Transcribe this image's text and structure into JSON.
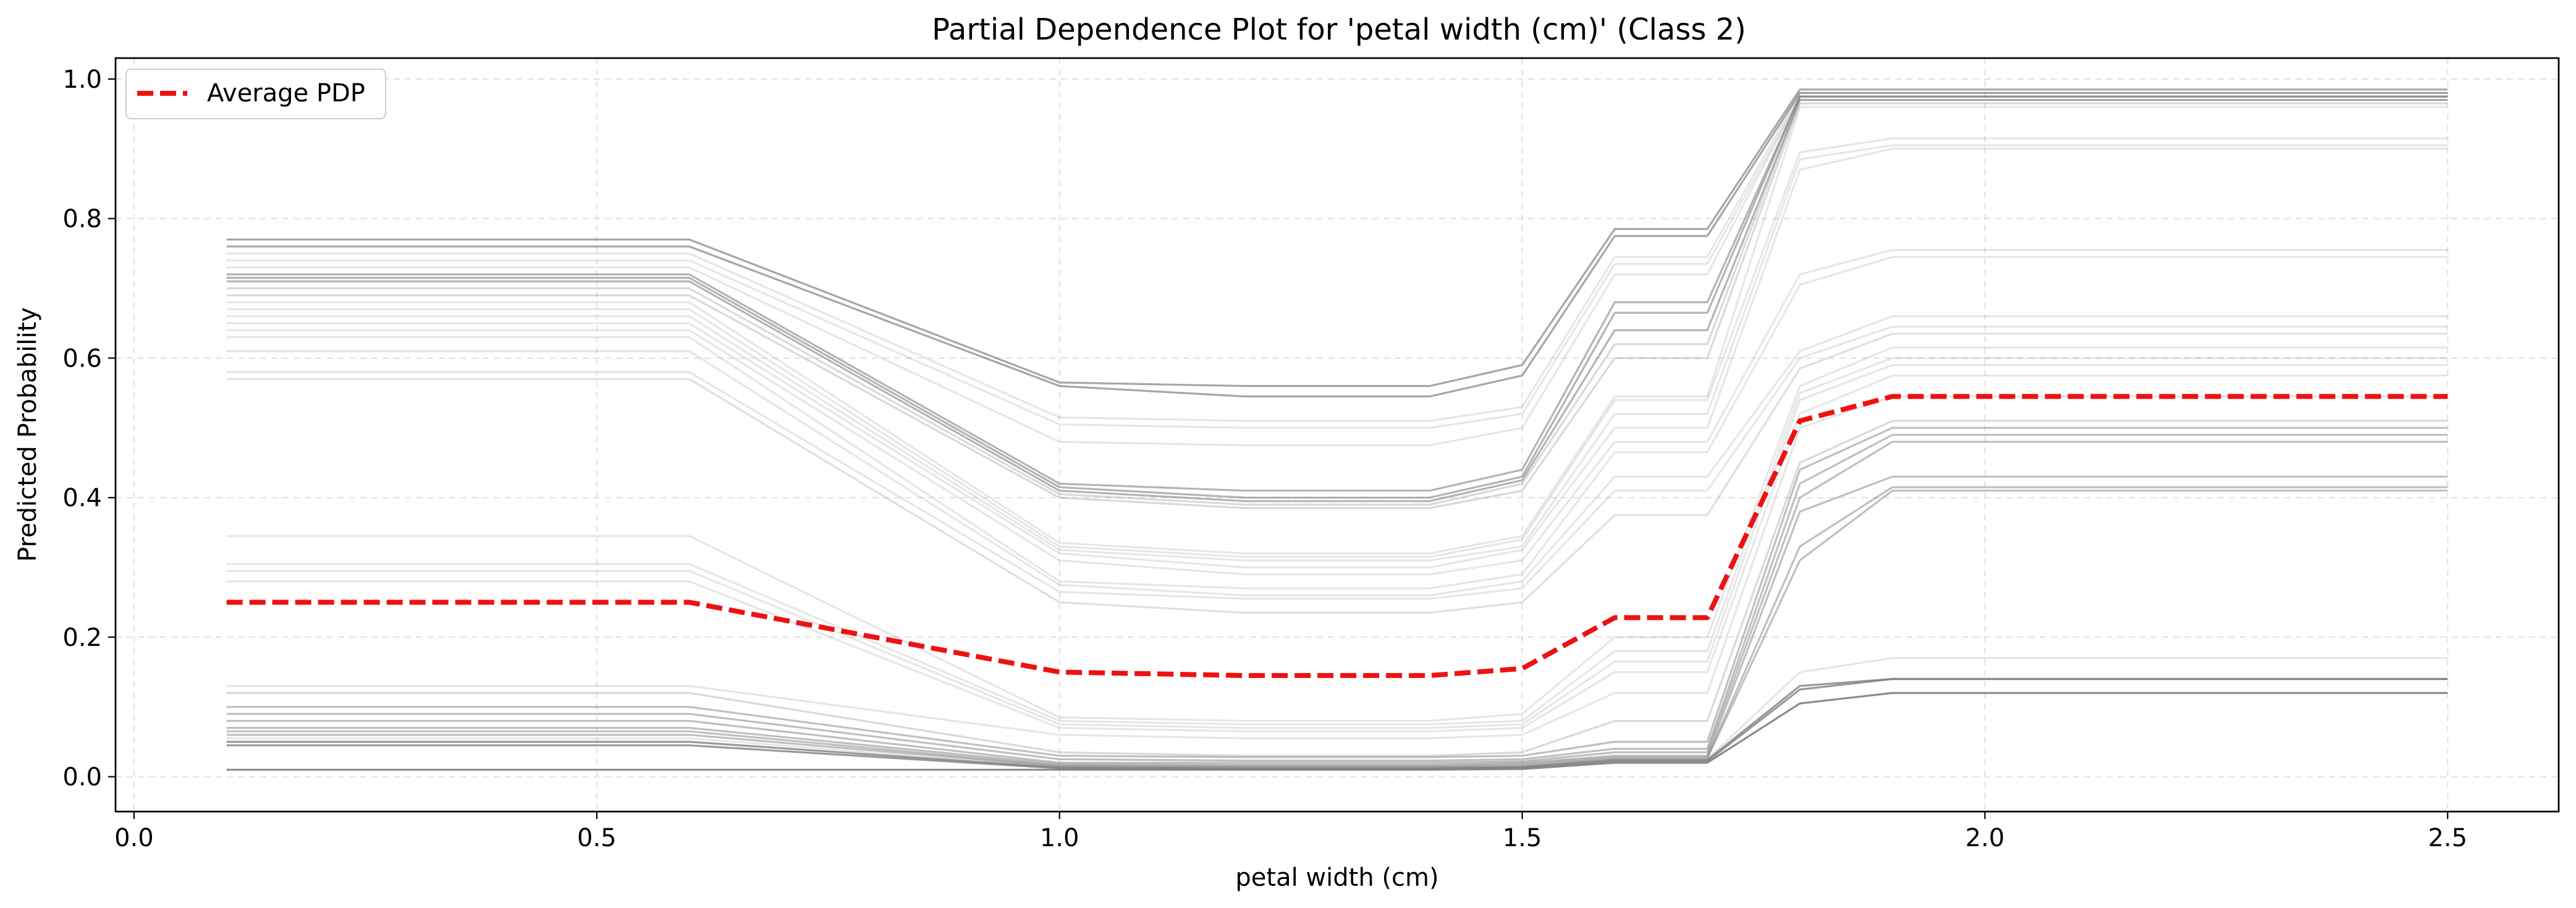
{
  "chart_data": {
    "type": "line",
    "title": "Partial Dependence Plot for 'petal width (cm)' (Class 2)",
    "xlabel": "petal width (cm)",
    "ylabel": "Predicted Probability",
    "xlim": [
      -0.02,
      2.62
    ],
    "ylim": [
      -0.05,
      1.03
    ],
    "x_ticks": [
      0.0,
      0.5,
      1.0,
      1.5,
      2.0,
      2.5
    ],
    "x_tick_labels": [
      "0.0",
      "0.5",
      "1.0",
      "1.5",
      "2.0",
      "2.5"
    ],
    "y_ticks": [
      0.0,
      0.2,
      0.4,
      0.6,
      0.8,
      1.0
    ],
    "y_tick_labels": [
      "0.0",
      "0.2",
      "0.4",
      "0.6",
      "0.8",
      "1.0"
    ],
    "grid": true,
    "legend_position": "upper-left",
    "x": [
      0.1,
      0.6,
      1.0,
      1.2,
      1.4,
      1.5,
      1.6,
      1.7,
      1.8,
      1.9,
      2.5
    ],
    "average_pdp": {
      "name": "Average PDP",
      "color": "#ee1111",
      "values": [
        0.25,
        0.25,
        0.15,
        0.145,
        0.145,
        0.155,
        0.228,
        0.228,
        0.51,
        0.545,
        0.545
      ]
    },
    "ice_color": "#808080",
    "ice_series": [
      {
        "values": [
          0.77,
          0.77,
          0.565,
          0.56,
          0.56,
          0.59,
          0.785,
          0.785,
          0.985,
          0.985,
          0.985
        ],
        "opacity": 0.7
      },
      {
        "values": [
          0.76,
          0.76,
          0.56,
          0.545,
          0.545,
          0.575,
          0.775,
          0.775,
          0.98,
          0.98,
          0.98
        ],
        "opacity": 0.7
      },
      {
        "values": [
          0.75,
          0.75,
          0.515,
          0.51,
          0.51,
          0.53,
          0.745,
          0.745,
          0.98,
          0.98,
          0.98
        ],
        "opacity": 0.2
      },
      {
        "values": [
          0.74,
          0.74,
          0.505,
          0.5,
          0.5,
          0.52,
          0.735,
          0.735,
          0.975,
          0.975,
          0.975
        ],
        "opacity": 0.2
      },
      {
        "values": [
          0.73,
          0.73,
          0.48,
          0.475,
          0.475,
          0.5,
          0.72,
          0.72,
          0.975,
          0.975,
          0.975
        ],
        "opacity": 0.2
      },
      {
        "values": [
          0.72,
          0.72,
          0.42,
          0.41,
          0.41,
          0.44,
          0.68,
          0.68,
          0.975,
          0.975,
          0.975
        ],
        "opacity": 0.6
      },
      {
        "values": [
          0.715,
          0.715,
          0.415,
          0.4,
          0.4,
          0.43,
          0.665,
          0.665,
          0.975,
          0.975,
          0.975
        ],
        "opacity": 0.6
      },
      {
        "values": [
          0.71,
          0.71,
          0.41,
          0.395,
          0.395,
          0.425,
          0.64,
          0.64,
          0.97,
          0.97,
          0.97
        ],
        "opacity": 0.6
      },
      {
        "values": [
          0.7,
          0.7,
          0.405,
          0.39,
          0.39,
          0.42,
          0.62,
          0.62,
          0.97,
          0.97,
          0.97
        ],
        "opacity": 0.3
      },
      {
        "values": [
          0.69,
          0.69,
          0.4,
          0.385,
          0.385,
          0.41,
          0.6,
          0.6,
          0.965,
          0.965,
          0.965
        ],
        "opacity": 0.3
      },
      {
        "values": [
          0.68,
          0.68,
          0.335,
          0.32,
          0.32,
          0.345,
          0.545,
          0.545,
          0.96,
          0.96,
          0.96
        ],
        "opacity": 0.2
      },
      {
        "values": [
          0.67,
          0.67,
          0.33,
          0.315,
          0.315,
          0.34,
          0.54,
          0.54,
          0.895,
          0.915,
          0.915
        ],
        "opacity": 0.2
      },
      {
        "values": [
          0.66,
          0.66,
          0.325,
          0.31,
          0.31,
          0.33,
          0.52,
          0.52,
          0.885,
          0.905,
          0.905
        ],
        "opacity": 0.2
      },
      {
        "values": [
          0.65,
          0.65,
          0.32,
          0.3,
          0.3,
          0.325,
          0.5,
          0.5,
          0.87,
          0.9,
          0.9
        ],
        "opacity": 0.2
      },
      {
        "values": [
          0.64,
          0.64,
          0.31,
          0.29,
          0.29,
          0.31,
          0.48,
          0.48,
          0.72,
          0.755,
          0.755
        ],
        "opacity": 0.2
      },
      {
        "values": [
          0.63,
          0.63,
          0.28,
          0.27,
          0.27,
          0.29,
          0.465,
          0.465,
          0.705,
          0.745,
          0.745
        ],
        "opacity": 0.2
      },
      {
        "values": [
          0.61,
          0.61,
          0.275,
          0.26,
          0.26,
          0.28,
          0.43,
          0.43,
          0.61,
          0.66,
          0.66
        ],
        "opacity": 0.2
      },
      {
        "values": [
          0.58,
          0.58,
          0.265,
          0.255,
          0.255,
          0.27,
          0.41,
          0.41,
          0.6,
          0.645,
          0.645
        ],
        "opacity": 0.2
      },
      {
        "values": [
          0.57,
          0.57,
          0.25,
          0.235,
          0.235,
          0.25,
          0.375,
          0.375,
          0.585,
          0.635,
          0.635
        ],
        "opacity": 0.25
      },
      {
        "values": [
          0.345,
          0.345,
          0.085,
          0.08,
          0.08,
          0.09,
          0.2,
          0.2,
          0.56,
          0.615,
          0.615
        ],
        "opacity": 0.2
      },
      {
        "values": [
          0.305,
          0.305,
          0.08,
          0.075,
          0.075,
          0.08,
          0.18,
          0.18,
          0.55,
          0.6,
          0.6
        ],
        "opacity": 0.2
      },
      {
        "values": [
          0.295,
          0.295,
          0.075,
          0.07,
          0.07,
          0.075,
          0.165,
          0.165,
          0.54,
          0.59,
          0.59
        ],
        "opacity": 0.2
      },
      {
        "values": [
          0.28,
          0.28,
          0.07,
          0.065,
          0.065,
          0.07,
          0.15,
          0.15,
          0.52,
          0.575,
          0.575
        ],
        "opacity": 0.2
      },
      {
        "values": [
          0.13,
          0.13,
          0.06,
          0.055,
          0.055,
          0.06,
          0.12,
          0.12,
          0.5,
          0.545,
          0.545
        ],
        "opacity": 0.2
      },
      {
        "values": [
          0.12,
          0.12,
          0.035,
          0.03,
          0.03,
          0.035,
          0.08,
          0.08,
          0.45,
          0.51,
          0.51
        ],
        "opacity": 0.3
      },
      {
        "values": [
          0.1,
          0.1,
          0.03,
          0.028,
          0.028,
          0.03,
          0.05,
          0.05,
          0.44,
          0.5,
          0.5
        ],
        "opacity": 0.5
      },
      {
        "values": [
          0.09,
          0.09,
          0.025,
          0.023,
          0.023,
          0.025,
          0.04,
          0.04,
          0.42,
          0.49,
          0.49
        ],
        "opacity": 0.5
      },
      {
        "values": [
          0.08,
          0.08,
          0.02,
          0.02,
          0.02,
          0.022,
          0.035,
          0.035,
          0.4,
          0.48,
          0.48
        ],
        "opacity": 0.5
      },
      {
        "values": [
          0.07,
          0.07,
          0.018,
          0.017,
          0.017,
          0.02,
          0.03,
          0.03,
          0.38,
          0.43,
          0.43
        ],
        "opacity": 0.5
      },
      {
        "values": [
          0.065,
          0.065,
          0.016,
          0.015,
          0.015,
          0.018,
          0.028,
          0.028,
          0.33,
          0.415,
          0.415
        ],
        "opacity": 0.5
      },
      {
        "values": [
          0.06,
          0.06,
          0.015,
          0.014,
          0.014,
          0.016,
          0.026,
          0.026,
          0.31,
          0.41,
          0.41
        ],
        "opacity": 0.5
      },
      {
        "values": [
          0.055,
          0.055,
          0.014,
          0.013,
          0.013,
          0.015,
          0.025,
          0.025,
          0.15,
          0.17,
          0.17
        ],
        "opacity": 0.2
      },
      {
        "values": [
          0.05,
          0.05,
          0.013,
          0.012,
          0.012,
          0.014,
          0.024,
          0.024,
          0.13,
          0.14,
          0.14
        ],
        "opacity": 0.8
      },
      {
        "values": [
          0.045,
          0.045,
          0.012,
          0.011,
          0.011,
          0.013,
          0.022,
          0.022,
          0.125,
          0.14,
          0.14
        ],
        "opacity": 0.8
      },
      {
        "values": [
          0.01,
          0.01,
          0.01,
          0.01,
          0.01,
          0.011,
          0.02,
          0.02,
          0.105,
          0.12,
          0.12
        ],
        "opacity": 0.9
      }
    ]
  }
}
